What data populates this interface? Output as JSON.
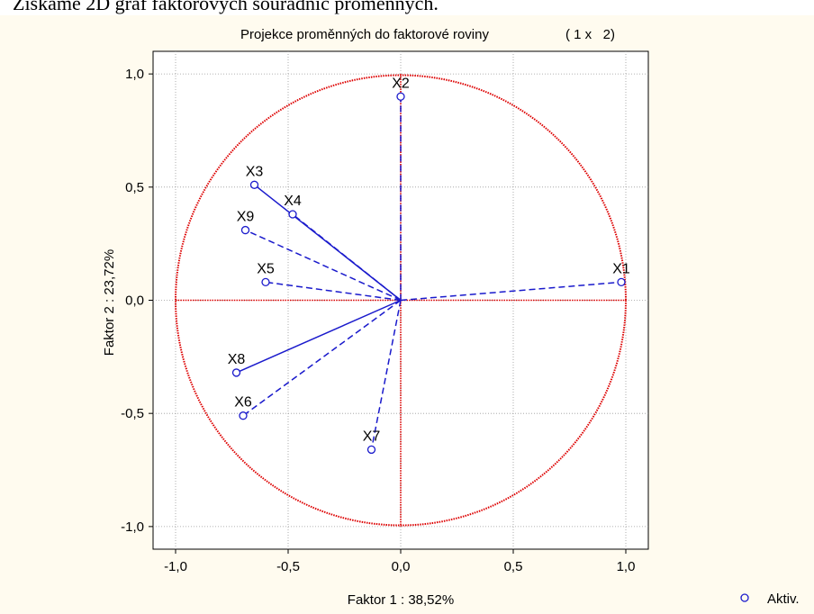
{
  "caption": "Získáme 2D graf faktorových souřadnic proměnných.",
  "chart_data": {
    "type": "scatter",
    "title": "Projekce proměnných do faktorové roviny",
    "title_suffix": "( 1 x   2)",
    "xlabel": "Faktor 1 : 38,52%",
    "ylabel": "Faktor 2 : 23,72%",
    "xlim": [
      -1.1,
      1.1
    ],
    "ylim": [
      -1.1,
      1.1
    ],
    "xticks": [
      {
        "v": -1.0,
        "label": "-1,0"
      },
      {
        "v": -0.5,
        "label": "-0,5"
      },
      {
        "v": 0.0,
        "label": "0,0"
      },
      {
        "v": 0.5,
        "label": "0,5"
      },
      {
        "v": 1.0,
        "label": "1,0"
      }
    ],
    "yticks": [
      {
        "v": 1.0,
        "label": "1,0"
      },
      {
        "v": 0.5,
        "label": "0,5"
      },
      {
        "v": 0.0,
        "label": "0,0"
      },
      {
        "v": -0.5,
        "label": "-0,5"
      },
      {
        "v": -1.0,
        "label": "-1,0"
      }
    ],
    "grid": true,
    "unit_circle": true,
    "legend": {
      "position": "bottom-right",
      "label": "Aktiv."
    },
    "colors": {
      "points": "#1a1acc",
      "circle": "#dd0000",
      "axes": "#dd0000",
      "grid": "#9a9a9a"
    },
    "points": [
      {
        "name": "X1",
        "x": 0.98,
        "y": 0.08,
        "line": "dashed"
      },
      {
        "name": "X2",
        "x": 0.0,
        "y": 0.9,
        "line": "dashed"
      },
      {
        "name": "X3",
        "x": -0.65,
        "y": 0.51,
        "line": "solid"
      },
      {
        "name": "X4",
        "x": -0.48,
        "y": 0.38,
        "line": "dashed"
      },
      {
        "name": "X5",
        "x": -0.6,
        "y": 0.08,
        "line": "dashed"
      },
      {
        "name": "X6",
        "x": -0.7,
        "y": -0.51,
        "line": "dashed"
      },
      {
        "name": "X7",
        "x": -0.13,
        "y": -0.66,
        "line": "dashed"
      },
      {
        "name": "X8",
        "x": -0.73,
        "y": -0.32,
        "line": "solid"
      },
      {
        "name": "X9",
        "x": -0.69,
        "y": 0.31,
        "line": "dashed"
      }
    ]
  }
}
